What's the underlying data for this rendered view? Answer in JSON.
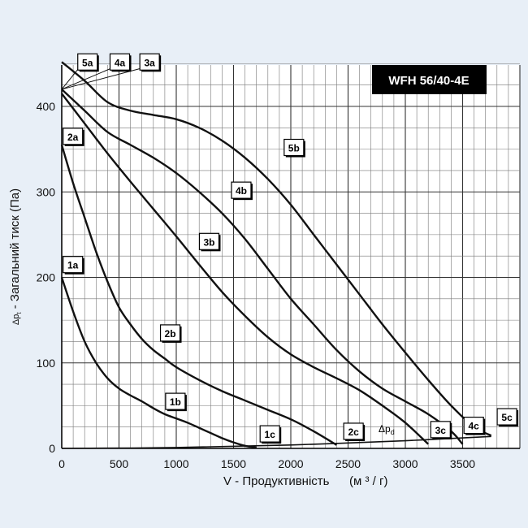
{
  "chart_data": {
    "type": "line",
    "title": "WFH 56/40-4E",
    "xlabel": "V - Продуктивність",
    "xunit": "(м ³ / г)",
    "ylabel": "Δpt - Загальний тиск (Па)",
    "ylabel_symbol": "Δp",
    "ylabel_sub": "t",
    "ylabel_text": " - Загальний тиск (Па)",
    "xlim": [
      0,
      4000
    ],
    "ylim": [
      0,
      450
    ],
    "xticks": [
      0,
      500,
      1000,
      1500,
      2000,
      2500,
      3000,
      3500
    ],
    "yticks": [
      0,
      100,
      200,
      300,
      400
    ],
    "grid": true,
    "dynamic_pressure_label": "Δpd",
    "dynamic_pressure_symbol": "Δp",
    "dynamic_pressure_sub": "d",
    "series": [
      {
        "name": "1",
        "points": [
          [
            0,
            200
          ],
          [
            100,
            160
          ],
          [
            200,
            125
          ],
          [
            300,
            100
          ],
          [
            400,
            82
          ],
          [
            500,
            70
          ],
          [
            600,
            62
          ],
          [
            700,
            55
          ],
          [
            800,
            47
          ],
          [
            900,
            40
          ],
          [
            1000,
            35
          ],
          [
            1100,
            30
          ],
          [
            1200,
            24
          ],
          [
            1300,
            18
          ],
          [
            1400,
            12
          ],
          [
            1500,
            7
          ],
          [
            1600,
            3
          ],
          [
            1700,
            1
          ]
        ]
      },
      {
        "name": "2",
        "points": [
          [
            0,
            355
          ],
          [
            100,
            310
          ],
          [
            200,
            270
          ],
          [
            300,
            230
          ],
          [
            400,
            195
          ],
          [
            500,
            165
          ],
          [
            600,
            145
          ],
          [
            700,
            128
          ],
          [
            800,
            115
          ],
          [
            900,
            105
          ],
          [
            1000,
            95
          ],
          [
            1200,
            80
          ],
          [
            1400,
            67
          ],
          [
            1600,
            56
          ],
          [
            1800,
            45
          ],
          [
            2000,
            34
          ],
          [
            2200,
            20
          ],
          [
            2400,
            4
          ]
        ]
      },
      {
        "name": "3",
        "points": [
          [
            0,
            415
          ],
          [
            200,
            380
          ],
          [
            400,
            345
          ],
          [
            600,
            312
          ],
          [
            800,
            280
          ],
          [
            1000,
            248
          ],
          [
            1200,
            215
          ],
          [
            1400,
            183
          ],
          [
            1600,
            155
          ],
          [
            1800,
            130
          ],
          [
            2000,
            110
          ],
          [
            2200,
            95
          ],
          [
            2400,
            82
          ],
          [
            2600,
            68
          ],
          [
            2800,
            50
          ],
          [
            3000,
            30
          ],
          [
            3200,
            5
          ]
        ]
      },
      {
        "name": "4",
        "points": [
          [
            0,
            420
          ],
          [
            200,
            395
          ],
          [
            400,
            370
          ],
          [
            600,
            355
          ],
          [
            800,
            340
          ],
          [
            1000,
            322
          ],
          [
            1200,
            300
          ],
          [
            1400,
            275
          ],
          [
            1600,
            245
          ],
          [
            1800,
            210
          ],
          [
            2000,
            175
          ],
          [
            2200,
            145
          ],
          [
            2400,
            115
          ],
          [
            2600,
            90
          ],
          [
            2800,
            70
          ],
          [
            3000,
            55
          ],
          [
            3200,
            40
          ],
          [
            3400,
            20
          ],
          [
            3500,
            5
          ]
        ]
      },
      {
        "name": "5",
        "points": [
          [
            0,
            452
          ],
          [
            200,
            430
          ],
          [
            400,
            405
          ],
          [
            600,
            395
          ],
          [
            800,
            390
          ],
          [
            1000,
            385
          ],
          [
            1200,
            375
          ],
          [
            1400,
            360
          ],
          [
            1600,
            340
          ],
          [
            1800,
            315
          ],
          [
            2000,
            285
          ],
          [
            2200,
            250
          ],
          [
            2400,
            215
          ],
          [
            2600,
            180
          ],
          [
            2800,
            145
          ],
          [
            3000,
            112
          ],
          [
            3200,
            80
          ],
          [
            3400,
            50
          ],
          [
            3600,
            25
          ],
          [
            3750,
            15
          ]
        ]
      },
      {
        "name": "Δpd",
        "points": [
          [
            0,
            0
          ],
          [
            1000,
            1
          ],
          [
            2000,
            4
          ],
          [
            3000,
            9
          ],
          [
            3750,
            14
          ]
        ]
      }
    ],
    "curve_labels": [
      {
        "text": "5a",
        "at": [
          218,
          452
        ],
        "box": true
      },
      {
        "text": "4a",
        "at": [
          500,
          452
        ],
        "box": true
      },
      {
        "text": "3a",
        "at": [
          760,
          452
        ],
        "box": true
      },
      {
        "text": "2a",
        "at": [
          90,
          365
        ],
        "box": true
      },
      {
        "text": "1a",
        "at": [
          90,
          215
        ],
        "box": true
      },
      {
        "text": "5b",
        "at": [
          2020,
          352
        ],
        "box": true
      },
      {
        "text": "4b",
        "at": [
          1560,
          302
        ],
        "box": true
      },
      {
        "text": "3b",
        "at": [
          1280,
          242
        ],
        "box": true
      },
      {
        "text": "2b",
        "at": [
          940,
          135
        ],
        "box": true
      },
      {
        "text": "1b",
        "at": [
          985,
          55
        ],
        "box": true
      },
      {
        "text": "1c",
        "at": [
          1810,
          17
        ],
        "box": true
      },
      {
        "text": "2c",
        "at": [
          2540,
          20
        ],
        "box": true
      },
      {
        "text": "3c",
        "at": [
          3300,
          22
        ],
        "box": true
      },
      {
        "text": "4c",
        "at": [
          3590,
          27
        ],
        "box": true
      },
      {
        "text": "5c",
        "at": [
          3880,
          37
        ],
        "box": true
      }
    ],
    "leader_lines": [
      {
        "from": [
          0,
          420
        ],
        "to": [
          2.5,
          452
        ]
      },
      {
        "from": [
          0,
          420
        ],
        "to": [
          4.5,
          452
        ]
      },
      {
        "from": [
          0,
          420
        ],
        "to": [
          6.5,
          452
        ]
      }
    ]
  }
}
